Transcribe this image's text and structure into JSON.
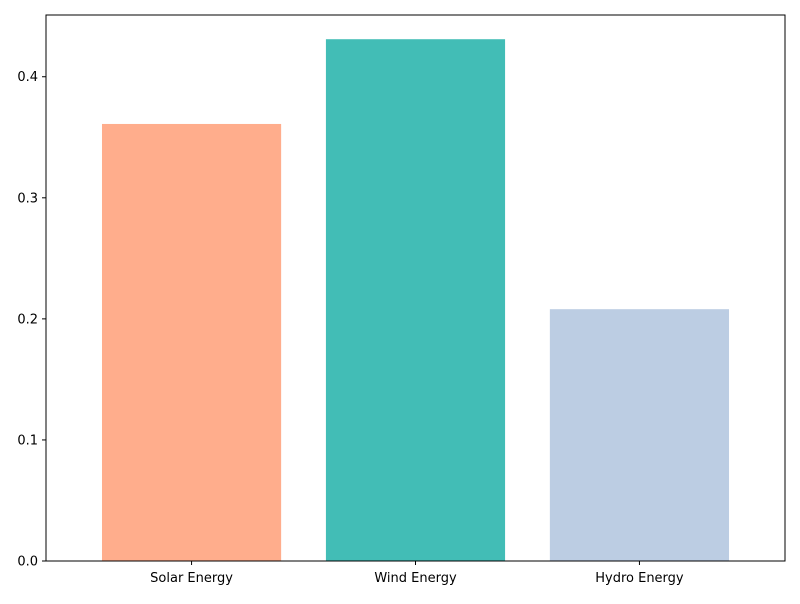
{
  "chart_data": {
    "type": "bar",
    "title": "",
    "xlabel": "",
    "ylabel": "",
    "categories": [
      "Solar Energy",
      "Wind Energy",
      "Hydro Energy"
    ],
    "values": [
      0.361,
      0.431,
      0.208
    ],
    "colors": [
      "#ffad8c",
      "#42bdb6",
      "#bccde3"
    ],
    "ylim": [
      0,
      0.451
    ],
    "yticks": [
      0.0,
      0.1,
      0.2,
      0.3,
      0.4
    ],
    "ytick_labels": [
      "0.0",
      "0.1",
      "0.2",
      "0.3",
      "0.4"
    ],
    "grid": false,
    "legend": "none"
  }
}
